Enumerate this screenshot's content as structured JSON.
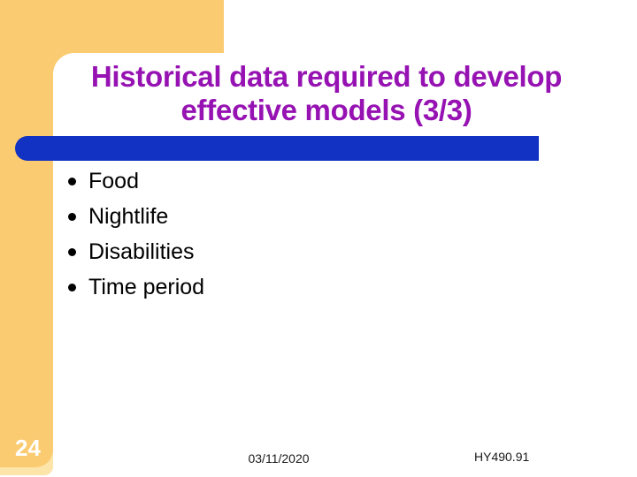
{
  "slide": {
    "title": {
      "line1": "Historical data required to develop",
      "line2": "effective models (3/3)"
    },
    "bullets": {
      "items": [
        "Food",
        "Nightlife",
        "Disabilities",
        "Time period"
      ]
    },
    "footer": {
      "slide_number": "24",
      "date": "03/11/2020",
      "course": "HY490.91"
    },
    "colors": {
      "accent_yellow": "#FBCB72",
      "accent_pale": "#FDE4A8",
      "bar_blue": "#1132C2",
      "title_purple": "#9612B2",
      "bullet_text": "#000000",
      "slide_number_text": "#FFFFFF"
    }
  }
}
